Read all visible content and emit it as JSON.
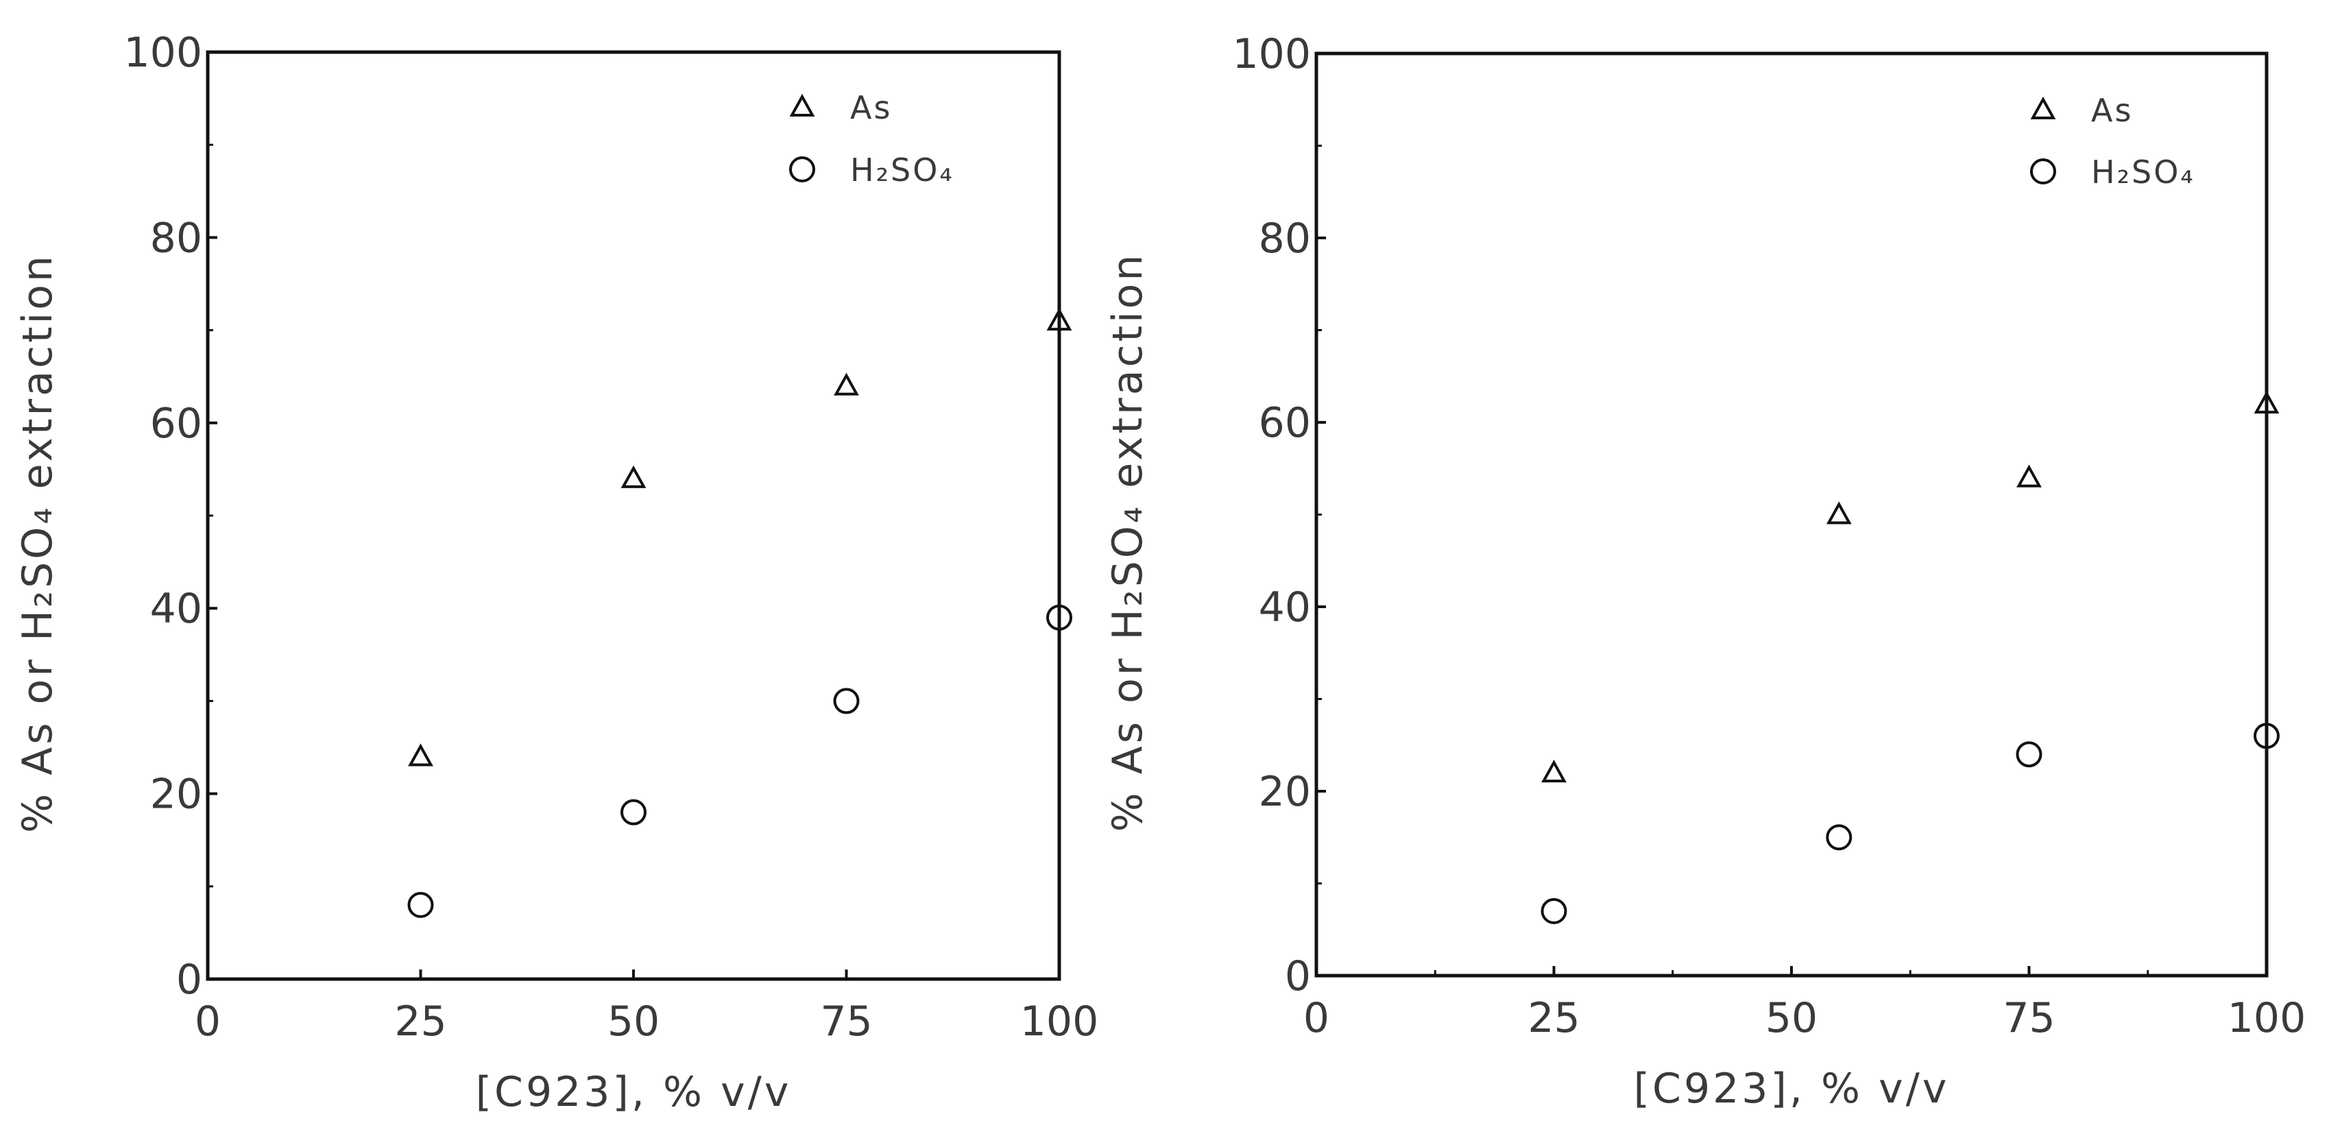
{
  "chart_data": [
    {
      "type": "scatter",
      "xlabel": "[C923], % v/v",
      "ylabel": "% As or H₂SO₄ extraction",
      "xlim": [
        0,
        100
      ],
      "ylim": [
        0,
        100
      ],
      "xticks": [
        "0",
        "25",
        "50",
        "75",
        "100"
      ],
      "yticks": [
        "0",
        "20",
        "40",
        "60",
        "80",
        "100"
      ],
      "grid": false,
      "legend_placement": "top-right",
      "series": [
        {
          "name": "As",
          "marker": "triangle-open",
          "color": "#000000",
          "x": [
            25,
            50,
            75,
            100
          ],
          "y": [
            24,
            54,
            64,
            71
          ]
        },
        {
          "name": "H₂SO₄",
          "marker": "circle-open",
          "color": "#000000",
          "x": [
            25,
            50,
            75,
            100
          ],
          "y": [
            8,
            18,
            30,
            39
          ]
        }
      ]
    },
    {
      "type": "scatter",
      "xlabel": "[C923], % v/v",
      "ylabel": "% As or H₂SO₄ extraction",
      "xlim": [
        0,
        100
      ],
      "ylim": [
        0,
        100
      ],
      "xticks": [
        "0",
        "25",
        "50",
        "75",
        "100"
      ],
      "yticks": [
        "0",
        "20",
        "40",
        "60",
        "80",
        "100"
      ],
      "grid": false,
      "legend_placement": "top-right",
      "series": [
        {
          "name": "As",
          "marker": "triangle-open",
          "color": "#000000",
          "x": [
            25,
            55,
            75,
            100
          ],
          "y": [
            22,
            50,
            54,
            62
          ]
        },
        {
          "name": "H₂SO₄",
          "marker": "circle-open",
          "color": "#000000",
          "x": [
            25,
            55,
            75,
            100
          ],
          "y": [
            7,
            15,
            24,
            26
          ]
        }
      ]
    }
  ]
}
